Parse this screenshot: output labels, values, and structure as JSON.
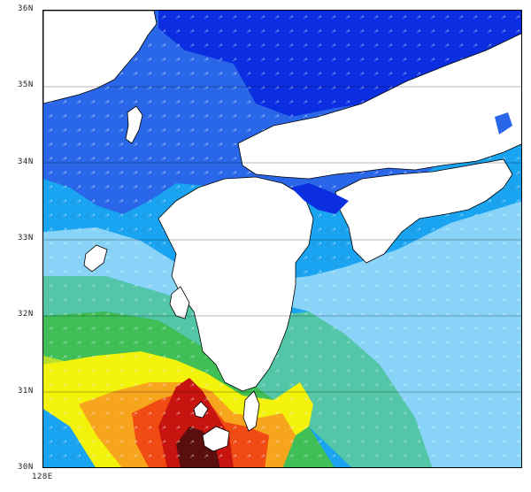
{
  "map": {
    "lat_labels": [
      {
        "text": "36N",
        "lat": 36
      },
      {
        "text": "35N",
        "lat": 35
      },
      {
        "text": "34N",
        "lat": 34
      },
      {
        "text": "33N",
        "lat": 33
      },
      {
        "text": "32N",
        "lat": 32
      },
      {
        "text": "31N",
        "lat": 31
      },
      {
        "text": "30N",
        "lat": 30
      }
    ],
    "lon_labels": [
      {
        "text": "128E",
        "lon": 128
      }
    ],
    "extent": {
      "lat_min": 30,
      "lat_max": 36,
      "lon_min": 128,
      "lon_max": 134.2
    },
    "colors": {
      "deep_blue": "#0a2ee0",
      "blue": "#2a66e8",
      "cyan_blue": "#19a3f0",
      "light_blue": "#88d3f7",
      "teal": "#52c6a6",
      "green": "#3fbf55",
      "yellow_green": "#b8e02a",
      "yellow": "#f3f20a",
      "orange": "#f7a51c",
      "red_orange": "#ef4b12",
      "red": "#c7140f",
      "dark_red": "#5a0e0e",
      "land": "#ffffff",
      "coast": "#000000",
      "grid": "#000000"
    }
  }
}
